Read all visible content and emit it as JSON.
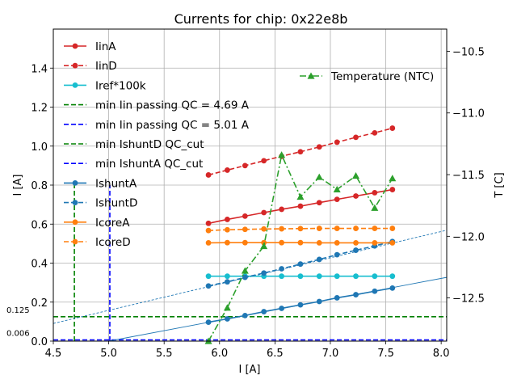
{
  "chart_data": {
    "type": "line",
    "title": "Currents for chip: 0x22e8b",
    "xlabel": "I [A]",
    "ylabel": "I [A]",
    "y2label": "T [C]",
    "xlim": [
      4.5,
      8.05
    ],
    "ylim": [
      0,
      1.6
    ],
    "y2lim": [
      -12.85,
      -10.32
    ],
    "xticks": [
      "4.5",
      "5.0",
      "5.5",
      "6.0",
      "6.5",
      "7.0",
      "7.5",
      "8.0"
    ],
    "yticks": [
      "0.0",
      "0.2",
      "0.4",
      "0.6",
      "0.8",
      "1.0",
      "1.2",
      "1.4"
    ],
    "y2ticks": [
      "−12.5",
      "−12.0",
      "−11.5",
      "−11.0",
      "−10.5"
    ],
    "grid": true,
    "colors": {
      "red": "#d62728",
      "cyan": "#17becf",
      "green": "#2ca02c",
      "blue": "#0000ff",
      "dgreen": "#008000",
      "steel": "#1f77b4",
      "orange": "#ff7f0e"
    },
    "x": [
      5.9,
      6.07,
      6.23,
      6.4,
      6.56,
      6.73,
      6.9,
      7.06,
      7.23,
      7.4,
      7.56
    ],
    "series": [
      {
        "name": "IinA",
        "color": "#d62728",
        "style": "solid",
        "marker": "circle",
        "axis": "left",
        "values": [
          0.604,
          0.624,
          0.641,
          0.659,
          0.676,
          0.692,
          0.71,
          0.727,
          0.744,
          0.761,
          0.777
        ]
      },
      {
        "name": "IinD",
        "color": "#d62728",
        "style": "dashed",
        "marker": "circle",
        "axis": "left",
        "values": [
          0.852,
          0.877,
          0.9,
          0.925,
          0.948,
          0.971,
          0.996,
          1.02,
          1.045,
          1.068,
          1.092
        ]
      },
      {
        "name": "Iref*100k",
        "color": "#17becf",
        "style": "solid",
        "marker": "circle",
        "axis": "left",
        "values": [
          0.333,
          0.333,
          0.333,
          0.333,
          0.333,
          0.333,
          0.333,
          0.333,
          0.333,
          0.333,
          0.333
        ]
      },
      {
        "name": "IshuntA",
        "color": "#1f77b4",
        "style": "solid",
        "marker": "circle",
        "axis": "left",
        "values": [
          0.097,
          0.114,
          0.131,
          0.151,
          0.168,
          0.186,
          0.203,
          0.222,
          0.238,
          0.256,
          0.272
        ]
      },
      {
        "name": "IshuntD",
        "color": "#1f77b4",
        "style": "dashed",
        "marker": "circle",
        "axis": "left",
        "values": [
          0.283,
          0.304,
          0.327,
          0.349,
          0.371,
          0.395,
          0.419,
          0.443,
          0.466,
          0.488,
          0.511
        ]
      },
      {
        "name": "IcoreA",
        "color": "#ff7f0e",
        "style": "solid",
        "marker": "circle",
        "axis": "left",
        "values": [
          0.504,
          0.505,
          0.505,
          0.505,
          0.505,
          0.505,
          0.504,
          0.504,
          0.504,
          0.504,
          0.504
        ]
      },
      {
        "name": "IcoreD",
        "color": "#ff7f0e",
        "style": "dashed",
        "marker": "circle",
        "axis": "left",
        "values": [
          0.567,
          0.571,
          0.573,
          0.575,
          0.576,
          0.577,
          0.578,
          0.578,
          0.578,
          0.578,
          0.578
        ]
      },
      {
        "name": "Temperature (NTC)",
        "color": "#2ca02c",
        "style": "dashdot",
        "marker": "triangle",
        "axis": "right",
        "values": [
          -12.87,
          -12.58,
          -12.28,
          -12.08,
          -11.34,
          -11.68,
          -11.52,
          -11.62,
          -11.51,
          -11.77,
          -11.53
        ]
      }
    ],
    "fit_lines": [
      {
        "name": "IshuntA fit",
        "color": "#1f77b4",
        "style": "solid",
        "slope": 0.1072,
        "intercept": -0.536
      },
      {
        "name": "IshuntD fit",
        "color": "#1f77b4",
        "style": "dashed",
        "slope": 0.1347,
        "intercept": -0.5156
      }
    ],
    "vlines": [
      {
        "name": "min Iin passing QC = 4.69 A",
        "color": "#008000",
        "x": 4.69,
        "ymax": 0.8
      },
      {
        "name": "min Iin passing QC = 5.01 A",
        "color": "#0000ff",
        "x": 5.01,
        "ymax": 0.8
      }
    ],
    "hlines": [
      {
        "name": "min IshuntD QC_cut",
        "color": "#008000",
        "y": 0.125,
        "label": "0.125"
      },
      {
        "name": "min IshuntA QC_cut",
        "color": "#0000ff",
        "y": 0.006,
        "label": "0.006"
      }
    ],
    "legend": [
      {
        "label": "IinA",
        "color": "#d62728",
        "style": "solid",
        "marker": "circle"
      },
      {
        "label": "IinD",
        "color": "#d62728",
        "style": "dashed",
        "marker": "circle"
      },
      {
        "label": "Iref*100k",
        "color": "#17becf",
        "style": "solid",
        "marker": "circle"
      },
      {
        "label": "min Iin passing QC = 4.69 A",
        "color": "#008000",
        "style": "dashed",
        "marker": "none"
      },
      {
        "label": "min Iin passing QC = 5.01 A",
        "color": "#0000ff",
        "style": "dashed",
        "marker": "none"
      },
      {
        "label": "min IshuntD QC_cut",
        "color": "#008000",
        "style": "dashed",
        "marker": "none"
      },
      {
        "label": "min IshuntA QC_cut",
        "color": "#0000ff",
        "style": "dashed",
        "marker": "none"
      },
      {
        "label": "IshuntA",
        "color": "#1f77b4",
        "style": "solid",
        "marker": "circle"
      },
      {
        "label": "IshuntD",
        "color": "#1f77b4",
        "style": "dashed",
        "marker": "circle"
      },
      {
        "label": "IcoreA",
        "color": "#ff7f0e",
        "style": "solid",
        "marker": "circle"
      },
      {
        "label": "IcoreD",
        "color": "#ff7f0e",
        "style": "dashed",
        "marker": "circle"
      }
    ],
    "legend2": [
      {
        "label": "Temperature (NTC)",
        "color": "#2ca02c",
        "style": "dashdot",
        "marker": "triangle"
      }
    ],
    "legend_position": "upper-left",
    "legend2_position": "upper-right"
  }
}
